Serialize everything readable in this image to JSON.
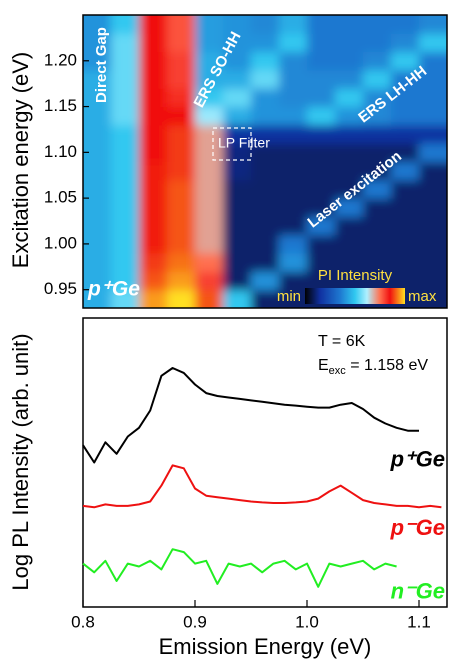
{
  "chart_data": [
    {
      "type": "heatmap",
      "ylabel": "Excitation energy (eV)",
      "xlim": [
        0.8,
        1.125
      ],
      "ylim": [
        0.93,
        1.25
      ],
      "yticks": [
        0.95,
        {
          "value": 1.0,
          "label": "1.00"
        },
        1.05,
        {
          "value": 1.1,
          "label": "1.10"
        },
        1.15,
        {
          "value": 1.2,
          "label": "1.20"
        }
      ],
      "x": [
        0.8125,
        0.8375,
        0.8625,
        0.8875,
        0.9125,
        0.9375,
        0.9625,
        0.9875,
        1.0125,
        1.0375,
        1.0625,
        1.0875,
        1.1125
      ],
      "y": [
        0.94,
        0.96,
        0.98,
        1.0,
        1.02,
        1.04,
        1.06,
        1.08,
        1.1,
        1.12,
        1.14,
        1.16,
        1.18,
        1.2,
        1.22,
        1.24
      ],
      "z": [
        [
          0.45,
          0.55,
          0.95,
          1.0,
          0.9,
          0.5,
          0.1,
          0.1,
          0.1,
          0.1,
          0.1,
          0.1,
          0.1
        ],
        [
          0.45,
          0.5,
          0.9,
          0.95,
          0.8,
          0.1,
          0.4,
          0.1,
          0.1,
          0.1,
          0.1,
          0.1,
          0.1
        ],
        [
          0.45,
          0.5,
          0.88,
          0.92,
          0.75,
          0.1,
          0.1,
          0.4,
          0.1,
          0.1,
          0.1,
          0.1,
          0.1
        ],
        [
          0.45,
          0.5,
          0.86,
          0.9,
          0.7,
          0.1,
          0.1,
          0.35,
          0.1,
          0.1,
          0.1,
          0.1,
          0.1
        ],
        [
          0.45,
          0.5,
          0.86,
          0.9,
          0.7,
          0.1,
          0.1,
          0.1,
          0.35,
          0.1,
          0.1,
          0.1,
          0.1
        ],
        [
          0.45,
          0.5,
          0.86,
          0.9,
          0.7,
          0.1,
          0.1,
          0.1,
          0.1,
          0.35,
          0.1,
          0.1,
          0.1
        ],
        [
          0.45,
          0.5,
          0.86,
          0.9,
          0.7,
          0.1,
          0.1,
          0.1,
          0.1,
          0.1,
          0.35,
          0.1,
          0.1
        ],
        [
          0.45,
          0.5,
          0.86,
          0.88,
          0.7,
          0.12,
          0.1,
          0.1,
          0.1,
          0.1,
          0.1,
          0.35,
          0.1
        ],
        [
          0.45,
          0.5,
          0.85,
          0.88,
          0.7,
          0.12,
          0.1,
          0.1,
          0.1,
          0.1,
          0.1,
          0.1,
          0.35
        ],
        [
          0.45,
          0.5,
          0.85,
          0.88,
          0.7,
          0.15,
          0.15,
          0.15,
          0.15,
          0.15,
          0.15,
          0.15,
          0.15
        ],
        [
          0.45,
          0.55,
          0.85,
          0.85,
          0.6,
          0.45,
          0.4,
          0.4,
          0.5,
          0.4,
          0.38,
          0.35,
          0.35
        ],
        [
          0.45,
          0.55,
          0.85,
          0.82,
          0.5,
          0.55,
          0.4,
          0.38,
          0.38,
          0.5,
          0.38,
          0.35,
          0.35
        ],
        [
          0.45,
          0.55,
          0.85,
          0.8,
          0.45,
          0.45,
          0.55,
          0.38,
          0.38,
          0.38,
          0.5,
          0.35,
          0.35
        ],
        [
          0.4,
          0.55,
          0.85,
          0.8,
          0.45,
          0.4,
          0.5,
          0.38,
          0.35,
          0.35,
          0.38,
          0.5,
          0.35
        ],
        [
          0.4,
          0.55,
          0.85,
          0.78,
          0.42,
          0.4,
          0.4,
          0.5,
          0.35,
          0.35,
          0.35,
          0.38,
          0.5
        ],
        [
          0.4,
          0.5,
          0.85,
          0.78,
          0.42,
          0.4,
          0.38,
          0.45,
          0.35,
          0.35,
          0.35,
          0.35,
          0.38
        ]
      ],
      "colorscale": [
        [
          0,
          "#000000"
        ],
        [
          0.15,
          "#1030a0"
        ],
        [
          0.35,
          "#1e78d0"
        ],
        [
          0.5,
          "#30c8f0"
        ],
        [
          0.62,
          "#b0f0ff"
        ],
        [
          0.75,
          "#ff7050"
        ],
        [
          0.85,
          "#f01010"
        ],
        [
          1,
          "#ffe020"
        ]
      ],
      "colorbar_title": "PI Intensity",
      "colorbar_min": "min",
      "colorbar_max": "max",
      "annotations": [
        "Direct Gap",
        "ERS SO-HH",
        "ERS LH-HH",
        "LP Filter",
        "Laser excitation",
        "p⁺Ge"
      ]
    },
    {
      "type": "line",
      "xlabel": "Emission Energy  (eV)",
      "ylabel": "Log PL Intensity (arb. unit)",
      "xlim": [
        0.8,
        1.125
      ],
      "ylim": [
        0,
        10
      ],
      "xticks": [
        0.8,
        0.9,
        {
          "value": 1.0,
          "label": "1.0"
        },
        1.1
      ],
      "annotations": [
        "T = 6K"
      ],
      "excitation_label": [
        "E",
        "exc",
        " = 1.158 eV"
      ],
      "x": [
        0.8,
        0.81,
        0.82,
        0.83,
        0.84,
        0.85,
        0.86,
        0.87,
        0.88,
        0.89,
        0.9,
        0.91,
        0.92,
        0.93,
        0.94,
        0.95,
        0.96,
        0.97,
        0.98,
        0.99,
        1.0,
        1.01,
        1.02,
        1.03,
        1.04,
        1.05,
        1.06,
        1.07,
        1.08,
        1.09,
        1.1,
        1.11,
        1.12
      ],
      "series": [
        {
          "name": "p⁺Ge",
          "color": "#000000",
          "values": [
            5.6,
            5.0,
            5.7,
            5.3,
            5.9,
            6.2,
            6.8,
            8.0,
            8.27,
            8.1,
            7.7,
            7.4,
            7.3,
            7.25,
            7.2,
            7.15,
            7.1,
            7.05,
            7.0,
            6.97,
            6.93,
            6.9,
            6.9,
            7.0,
            7.06,
            6.85,
            6.55,
            6.35,
            6.2,
            6.1,
            6.1,
            null,
            null
          ]
        },
        {
          "name": "p⁻Ge",
          "color": "#ee1111",
          "values": [
            3.5,
            3.45,
            3.55,
            3.5,
            3.5,
            3.55,
            3.65,
            4.2,
            4.9,
            4.8,
            4.1,
            3.85,
            3.8,
            3.75,
            3.7,
            3.65,
            3.62,
            3.6,
            3.6,
            3.62,
            3.65,
            3.75,
            4.0,
            4.2,
            3.95,
            3.7,
            3.6,
            3.55,
            3.5,
            3.5,
            3.45,
            3.5,
            3.45
          ]
        },
        {
          "name": "n⁻Ge",
          "color": "#22ee22",
          "values": [
            1.5,
            1.2,
            1.6,
            0.9,
            1.5,
            1.4,
            1.6,
            1.3,
            2.0,
            1.9,
            1.5,
            1.6,
            0.8,
            1.5,
            1.4,
            1.5,
            1.2,
            1.5,
            1.6,
            1.3,
            1.5,
            0.7,
            1.5,
            1.4,
            1.5,
            1.6,
            1.3,
            1.5,
            1.4,
            null,
            null,
            null,
            null
          ]
        }
      ]
    }
  ]
}
